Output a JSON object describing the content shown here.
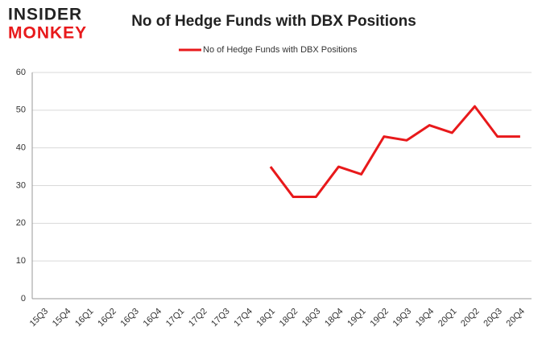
{
  "logo": {
    "line1": "INSIDER",
    "line2": "MONKEY"
  },
  "chart_data": {
    "type": "line",
    "title": "No of Hedge Funds with DBX Positions",
    "categories": [
      "15Q3",
      "15Q4",
      "16Q1",
      "16Q2",
      "16Q3",
      "16Q4",
      "17Q1",
      "17Q2",
      "17Q3",
      "17Q4",
      "18Q1",
      "18Q2",
      "18Q3",
      "18Q4",
      "19Q1",
      "19Q2",
      "19Q3",
      "19Q4",
      "20Q1",
      "20Q2",
      "20Q3",
      "20Q4"
    ],
    "series": [
      {
        "name": "No of Hedge Funds with DBX Positions",
        "color": "#e8191b",
        "values": [
          null,
          null,
          null,
          null,
          null,
          null,
          null,
          null,
          null,
          null,
          35,
          27,
          27,
          35,
          33,
          43,
          42,
          46,
          44,
          51,
          43,
          43
        ]
      }
    ],
    "ylim": [
      0,
      60
    ],
    "yticks": [
      0,
      10,
      20,
      30,
      40,
      50,
      60
    ],
    "grid": true,
    "legend": "top"
  }
}
